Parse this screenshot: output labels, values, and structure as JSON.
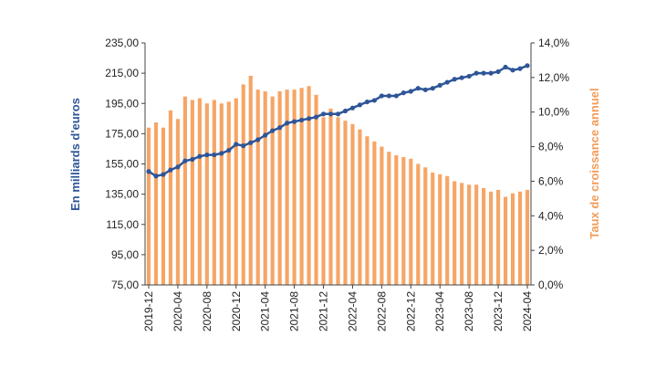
{
  "chart_data": {
    "type": "bar+line",
    "title": "",
    "x_tick_labels": [
      "2019-12",
      "2020-04",
      "2020-08",
      "2020-12",
      "2021-04",
      "2021-08",
      "2021-12",
      "2022-04",
      "2022-08",
      "2022-12",
      "2023-04",
      "2023-08",
      "2023-12",
      "2024-04"
    ],
    "categories": [
      "2019-12",
      "2020-01",
      "2020-02",
      "2020-03",
      "2020-04",
      "2020-05",
      "2020-06",
      "2020-07",
      "2020-08",
      "2020-09",
      "2020-10",
      "2020-11",
      "2020-12",
      "2021-01",
      "2021-02",
      "2021-03",
      "2021-04",
      "2021-05",
      "2021-06",
      "2021-07",
      "2021-08",
      "2021-09",
      "2021-10",
      "2021-11",
      "2021-12",
      "2022-01",
      "2022-02",
      "2022-03",
      "2022-04",
      "2022-05",
      "2022-06",
      "2022-07",
      "2022-08",
      "2022-09",
      "2022-10",
      "2022-11",
      "2022-12",
      "2023-01",
      "2023-02",
      "2023-03",
      "2023-04",
      "2023-05",
      "2023-06",
      "2023-07",
      "2023-08",
      "2023-09",
      "2023-10",
      "2023-11",
      "2023-12",
      "2024-01",
      "2024-02",
      "2024-03",
      "2024-04"
    ],
    "left_axis": {
      "label": "En milliards d'euros",
      "min": 75,
      "max": 235,
      "ticks": [
        "75,00",
        "95,00",
        "115,00",
        "135,00",
        "155,00",
        "175,00",
        "195,00",
        "215,00",
        "235,00"
      ]
    },
    "right_axis": {
      "label": "Taux de croissance annuel",
      "min": 0,
      "max": 14,
      "ticks": [
        "0,0%",
        "2,0%",
        "4,0%",
        "6,0%",
        "8,0%",
        "10,0%",
        "12,0%",
        "14,0%"
      ]
    },
    "series": [
      {
        "kind": "bar",
        "axis": "right",
        "color": "#f6a565",
        "values": [
          9.1,
          9.4,
          9.1,
          10.1,
          9.6,
          10.9,
          10.7,
          10.8,
          10.5,
          10.7,
          10.5,
          10.6,
          10.8,
          11.6,
          12.1,
          11.3,
          11.2,
          10.9,
          11.2,
          11.3,
          11.3,
          11.4,
          11.5,
          11.0,
          9.7,
          10.2,
          9.7,
          9.5,
          9.3,
          9.0,
          8.6,
          8.3,
          8.0,
          7.7,
          7.5,
          7.4,
          7.3,
          7.0,
          6.8,
          6.5,
          6.4,
          6.3,
          6.0,
          5.9,
          5.8,
          5.8,
          5.6,
          5.4,
          5.5,
          5.1,
          5.3,
          5.4,
          5.5
        ]
      },
      {
        "kind": "line",
        "axis": "left",
        "color": "#2e5597",
        "values": [
          150,
          147,
          148,
          151,
          153,
          157,
          158,
          160,
          161,
          161,
          162,
          164,
          168,
          167,
          169,
          171,
          174,
          177,
          179,
          182,
          183,
          184,
          185,
          186,
          188,
          188,
          188,
          190,
          192,
          194,
          196,
          197,
          200,
          200,
          200,
          202,
          203,
          205,
          204,
          205,
          207,
          209,
          211,
          212,
          213,
          215,
          215,
          215,
          216,
          219,
          217,
          218,
          220
        ]
      }
    ],
    "grid": false,
    "legend": "none"
  }
}
